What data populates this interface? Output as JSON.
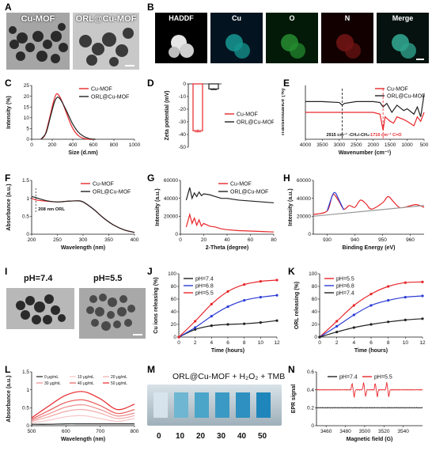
{
  "panel_labels": {
    "A": "A",
    "B": "B",
    "C": "C",
    "D": "D",
    "E": "E",
    "F": "F",
    "G": "G",
    "H": "H",
    "I": "I",
    "J": "J",
    "K": "K",
    "L": "L",
    "M": "M",
    "N": "N"
  },
  "A": {
    "left_caption": "Cu-MOF",
    "right_caption": "ORL@Cu-MOF"
  },
  "B": {
    "titles": [
      "HADDF",
      "Cu",
      "O",
      "N",
      "Merge"
    ]
  },
  "I": {
    "left_caption": "pH=7.4",
    "right_caption": "pH=5.5"
  },
  "M": {
    "title": "ORL@Cu-MOF + H₂O₂ + TMB",
    "concentrations": [
      "0",
      "10",
      "20",
      "30",
      "40",
      "50"
    ]
  },
  "colors": {
    "red": "#e8262a",
    "black": "#222222",
    "blue": "#2b3bd6",
    "pink": "#f08a8a",
    "grey": "#9a9a9a"
  },
  "chart_data": [
    {
      "id": "C",
      "type": "line",
      "xlabel": "Size (d.nm)",
      "ylabel": "Intensity (%)",
      "xlim": [
        0,
        1000
      ],
      "ylim": [
        0,
        25
      ],
      "xticks": [
        0,
        200,
        400,
        600,
        800,
        1000
      ],
      "yticks": [
        0,
        5,
        10,
        15,
        20,
        25
      ],
      "legend_placement": "top-right",
      "series": [
        {
          "name": "Cu-MOF",
          "color": "#e8262a",
          "x": [
            90,
            130,
            170,
            210,
            240,
            270,
            300,
            340,
            380,
            420,
            460,
            500,
            560,
            620
          ],
          "y": [
            0,
            2,
            9,
            17,
            21,
            20,
            17,
            12,
            7,
            3.5,
            1.5,
            0.5,
            0,
            0
          ]
        },
        {
          "name": "ORL@Cu-MOF",
          "color": "#222222",
          "x": [
            90,
            140,
            180,
            220,
            250,
            280,
            320,
            360,
            400,
            450,
            500,
            560,
            620
          ],
          "y": [
            0,
            3,
            10,
            17,
            19.5,
            18.5,
            15,
            11,
            7,
            3.5,
            1.5,
            0.3,
            0
          ]
        }
      ]
    },
    {
      "id": "D",
      "type": "bar",
      "xlabel": "",
      "ylabel": "Zeta potential (mV)",
      "ylim": [
        -50,
        0
      ],
      "yticks": [
        0,
        -10,
        -20,
        -30,
        -40,
        -50
      ],
      "legend_placement": "right",
      "series": [
        {
          "name": "Cu-MOF",
          "color": "#e8262a",
          "value": -37,
          "error": 1
        },
        {
          "name": "ORL@Cu-MOF",
          "color": "#222222",
          "value": -4,
          "error": 0.6
        }
      ]
    },
    {
      "id": "E",
      "type": "line",
      "xlabel": "Wavenumber (cm⁻¹)",
      "ylabel": "Transmittance (%)",
      "xlim": [
        4000,
        500
      ],
      "xticks": [
        4000,
        3500,
        3000,
        2500,
        2000,
        1500,
        1000,
        500
      ],
      "legend_placement": "top-right",
      "annotations": [
        "2915 cm⁻¹ -CH₂/-CH₃-",
        "1710 cm⁻¹ C=O"
      ],
      "series": [
        {
          "name": "Cu-MOF",
          "color": "#e8262a",
          "x": [
            4000,
            3500,
            3000,
            2500,
            2000,
            1800,
            1710,
            1650,
            1500,
            1400,
            1300,
            1100,
            1000,
            800,
            700,
            600,
            500
          ],
          "y": [
            60,
            60,
            60,
            60,
            60,
            58,
            40,
            55,
            50,
            48,
            55,
            52,
            50,
            45,
            55,
            50,
            60
          ]
        },
        {
          "name": "ORL@Cu-MOF",
          "color": "#222222",
          "x": [
            4000,
            3500,
            3000,
            2915,
            2850,
            2500,
            2000,
            1800,
            1710,
            1600,
            1450,
            1300,
            1100,
            1000,
            800,
            700,
            600,
            500
          ],
          "y": [
            72,
            72,
            71,
            68,
            70,
            72,
            72,
            71,
            66,
            70,
            60,
            68,
            62,
            64,
            58,
            66,
            55,
            80
          ]
        }
      ]
    },
    {
      "id": "F",
      "type": "line",
      "xlabel": "Wavelength (nm)",
      "ylabel": "Absorbance (a.u.)",
      "xlim": [
        200,
        400
      ],
      "ylim": [
        0,
        1.5
      ],
      "xticks": [
        200,
        250,
        300,
        350,
        400
      ],
      "yticks": [
        0.0,
        0.5,
        1.0,
        1.5
      ],
      "legend_placement": "top-right",
      "annotations": [
        "208 nm ORL"
      ],
      "series": [
        {
          "name": "Cu-MOF",
          "color": "#e8262a",
          "x": [
            200,
            210,
            230,
            250,
            270,
            290,
            300,
            320,
            340,
            360,
            380,
            400
          ],
          "y": [
            1.0,
            0.95,
            0.92,
            0.9,
            0.92,
            0.93,
            0.9,
            0.7,
            0.45,
            0.25,
            0.12,
            0.05
          ]
        },
        {
          "name": "ORL@Cu-MOF",
          "color": "#222222",
          "x": [
            200,
            208,
            230,
            250,
            270,
            290,
            300,
            320,
            340,
            360,
            380,
            400
          ],
          "y": [
            1.05,
            1.02,
            0.93,
            0.9,
            0.92,
            0.93,
            0.9,
            0.7,
            0.45,
            0.25,
            0.12,
            0.05
          ]
        }
      ]
    },
    {
      "id": "G",
      "type": "line",
      "xlabel": "2-Theta (degree)",
      "ylabel": "Intensity (a.u.)",
      "xlim": [
        0,
        80
      ],
      "ylim": [
        0,
        60000
      ],
      "xticks": [
        0,
        20,
        40,
        60,
        80
      ],
      "yticks": [
        0,
        20000,
        40000,
        60000
      ],
      "legend_placement": "top-right",
      "series": [
        {
          "name": "Cu-MOF",
          "color": "#e8262a",
          "x": [
            5,
            8,
            10,
            12,
            14,
            16,
            18,
            20,
            25,
            30,
            35,
            40,
            50,
            60,
            70,
            80
          ],
          "y": [
            8000,
            22000,
            12000,
            18000,
            10000,
            16000,
            9000,
            12000,
            9000,
            8000,
            6000,
            5000,
            4000,
            3500,
            3000,
            2500
          ]
        },
        {
          "name": "ORL@Cu-MOF",
          "color": "#222222",
          "x": [
            5,
            8,
            10,
            12,
            14,
            16,
            18,
            20,
            25,
            30,
            35,
            40,
            50,
            60,
            70,
            80
          ],
          "y": [
            38000,
            52000,
            40000,
            46000,
            42000,
            47000,
            43000,
            45000,
            44000,
            42000,
            40000,
            40000,
            38000,
            37000,
            36000,
            35000
          ]
        }
      ]
    },
    {
      "id": "H",
      "type": "line",
      "xlabel": "Binding Energy (eV)",
      "ylabel": "Intensity (a.u.)",
      "xlim": [
        925,
        965
      ],
      "ylim": [
        0,
        60000
      ],
      "xticks": [
        930,
        940,
        950,
        960
      ],
      "yticks": [
        0,
        20000,
        40000,
        60000
      ],
      "series": [
        {
          "name": "",
          "color": "#e8262a",
          "x": [
            925,
            930,
            932,
            934,
            936,
            938,
            940,
            942,
            944,
            946,
            950,
            952,
            954,
            956,
            958,
            962,
            965
          ],
          "y": [
            22000,
            26000,
            44000,
            38000,
            28000,
            32000,
            30000,
            38000,
            34000,
            28000,
            35000,
            42000,
            36000,
            30000,
            30000,
            33000,
            30000
          ]
        },
        {
          "name": "",
          "color": "#2b3bd6",
          "x": [
            930,
            932,
            933,
            934,
            936
          ],
          "y": [
            26000,
            44000,
            46000,
            40000,
            27000
          ]
        },
        {
          "name": "",
          "color": "#9a9a9a",
          "x": [
            925,
            965
          ],
          "y": [
            20000,
            32000
          ]
        }
      ]
    },
    {
      "id": "J",
      "type": "line",
      "xlabel": "Time (hours)",
      "ylabel": "Cu ions releasing (%)",
      "xlim": [
        0,
        12
      ],
      "ylim": [
        0,
        100
      ],
      "xticks": [
        0,
        2,
        4,
        6,
        8,
        10,
        12
      ],
      "yticks": [
        0,
        20,
        40,
        60,
        80,
        100
      ],
      "legend_placement": "top-left",
      "series": [
        {
          "name": "pH=7.4",
          "color": "#222222",
          "x": [
            0,
            2,
            4,
            6,
            8,
            10,
            12
          ],
          "y": [
            0,
            12,
            18,
            20,
            21,
            23,
            26
          ]
        },
        {
          "name": "pH=6.8",
          "color": "#2b3bd6",
          "x": [
            0,
            2,
            4,
            6,
            8,
            10,
            12
          ],
          "y": [
            0,
            15,
            33,
            48,
            58,
            63,
            66
          ]
        },
        {
          "name": "pH=5.5",
          "color": "#e8262a",
          "x": [
            0,
            2,
            4,
            6,
            8,
            10,
            12
          ],
          "y": [
            0,
            25,
            52,
            72,
            83,
            88,
            90
          ]
        }
      ]
    },
    {
      "id": "K",
      "type": "line",
      "xlabel": "Time (hours)",
      "ylabel": "ORL releasing (%)",
      "xlim": [
        0,
        12
      ],
      "ylim": [
        0,
        100
      ],
      "xticks": [
        0,
        2,
        4,
        6,
        8,
        10,
        12
      ],
      "yticks": [
        0,
        20,
        40,
        60,
        80,
        100
      ],
      "legend_placement": "top-left",
      "series": [
        {
          "name": "pH=5.5",
          "color": "#e8262a",
          "x": [
            0,
            2,
            4,
            6,
            8,
            10,
            12
          ],
          "y": [
            0,
            25,
            50,
            68,
            80,
            86,
            87
          ]
        },
        {
          "name": "pH=6.8",
          "color": "#2b3bd6",
          "x": [
            0,
            2,
            4,
            6,
            8,
            10,
            12
          ],
          "y": [
            0,
            17,
            35,
            50,
            58,
            63,
            65
          ]
        },
        {
          "name": "pH=7.4",
          "color": "#222222",
          "x": [
            0,
            2,
            4,
            6,
            8,
            10,
            12
          ],
          "y": [
            0,
            8,
            15,
            20,
            24,
            27,
            29
          ]
        }
      ]
    },
    {
      "id": "L",
      "type": "line",
      "xlabel": "Wavelength (nm)",
      "ylabel": "Absorbance (a.u.)",
      "xlim": [
        500,
        800
      ],
      "ylim": [
        0,
        1.5
      ],
      "xticks": [
        500,
        600,
        700,
        800
      ],
      "yticks": [
        0.0,
        0.5,
        1.0,
        1.5
      ],
      "legend_placement": "top",
      "series": [
        {
          "name": "0 μg/mL",
          "color": "#222222",
          "x": [
            500,
            550,
            600,
            650,
            700,
            750,
            800
          ],
          "y": [
            0.04,
            0.04,
            0.05,
            0.05,
            0.05,
            0.05,
            0.05
          ]
        },
        {
          "name": "10 μg/mL",
          "color": "#f7c4c4",
          "x": [
            500,
            550,
            600,
            650,
            700,
            750,
            800
          ],
          "y": [
            0.08,
            0.15,
            0.25,
            0.28,
            0.2,
            0.12,
            0.2
          ]
        },
        {
          "name": "20 μg/mL",
          "color": "#f3a9a9",
          "x": [
            500,
            550,
            600,
            650,
            700,
            750,
            800
          ],
          "y": [
            0.12,
            0.25,
            0.4,
            0.45,
            0.35,
            0.2,
            0.28
          ]
        },
        {
          "name": "30 μg/mL",
          "color": "#ee8b8b",
          "x": [
            500,
            550,
            600,
            650,
            700,
            750,
            800
          ],
          "y": [
            0.15,
            0.33,
            0.52,
            0.58,
            0.45,
            0.27,
            0.35
          ]
        },
        {
          "name": "40 μg/mL",
          "color": "#ea5a5a",
          "x": [
            500,
            550,
            600,
            650,
            700,
            750,
            800
          ],
          "y": [
            0.18,
            0.42,
            0.65,
            0.72,
            0.56,
            0.34,
            0.45
          ]
        },
        {
          "name": "50 μg/mL",
          "color": "#e8262a",
          "x": [
            500,
            550,
            600,
            650,
            700,
            750,
            800
          ],
          "y": [
            0.22,
            0.55,
            0.85,
            0.95,
            0.75,
            0.45,
            0.6
          ]
        }
      ]
    },
    {
      "id": "N",
      "type": "line",
      "xlabel": "Magnetic field (G)",
      "ylabel": "EPR signal",
      "xlim": [
        3450,
        3560
      ],
      "ylim": [
        0.0,
        0.6
      ],
      "xticks": [
        3460,
        3480,
        3500,
        3520,
        3540
      ],
      "yticks": [
        0.0,
        0.2,
        0.4,
        0.6
      ],
      "legend_placement": "top",
      "series": [
        {
          "name": "pH=7.4",
          "color": "#222222",
          "baseline": 0.2
        },
        {
          "name": "pH=5.5",
          "color": "#e8262a",
          "baseline": 0.4,
          "peaks": [
            3488,
            3500,
            3512,
            3524
          ]
        }
      ]
    }
  ]
}
